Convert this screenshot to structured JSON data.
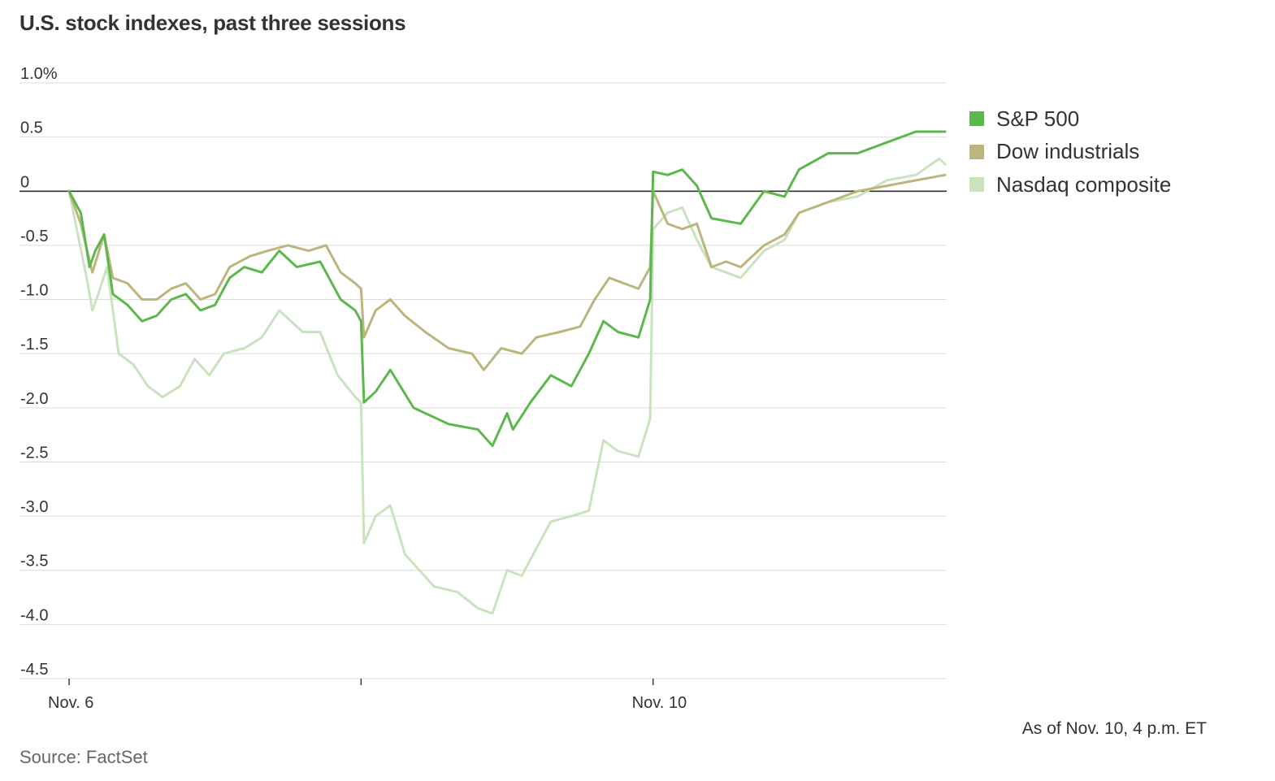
{
  "title": "U.S. stock indexes, past three sessions",
  "footnote": "As of Nov. 10, 4 p.m. ET",
  "source": "Source: FactSet",
  "chart_data": {
    "type": "line",
    "ylim": [
      -4.5,
      1.0
    ],
    "y_ticks": [
      {
        "value": 1.0,
        "label": "1.0%"
      },
      {
        "value": 0.5,
        "label": "0.5"
      },
      {
        "value": 0,
        "label": "0"
      },
      {
        "value": -0.5,
        "label": "-0.5"
      },
      {
        "value": -1.0,
        "label": "-1.0"
      },
      {
        "value": -1.5,
        "label": "-1.5"
      },
      {
        "value": -2.0,
        "label": "-2.0"
      },
      {
        "value": -2.5,
        "label": "-2.5"
      },
      {
        "value": -3.0,
        "label": "-3.0"
      },
      {
        "value": -3.5,
        "label": "-3.5"
      },
      {
        "value": -4.0,
        "label": "-4.0"
      },
      {
        "value": -4.5,
        "label": "-4.5"
      }
    ],
    "xlim": [
      0,
      3
    ],
    "x_ticks": [
      {
        "value": 0,
        "label": "Nov. 6"
      },
      {
        "value": 1,
        "label": ""
      },
      {
        "value": 2,
        "label": "Nov. 10"
      }
    ],
    "grid": true,
    "legend_position": "right",
    "series": [
      {
        "name": "S&P 500",
        "color": "#5cb84c",
        "points": [
          [
            0,
            0
          ],
          [
            0.04,
            -0.2
          ],
          [
            0.07,
            -0.7
          ],
          [
            0.09,
            -0.55
          ],
          [
            0.12,
            -0.4
          ],
          [
            0.15,
            -0.95
          ],
          [
            0.2,
            -1.05
          ],
          [
            0.25,
            -1.2
          ],
          [
            0.3,
            -1.15
          ],
          [
            0.35,
            -1.0
          ],
          [
            0.4,
            -0.95
          ],
          [
            0.45,
            -1.1
          ],
          [
            0.5,
            -1.05
          ],
          [
            0.55,
            -0.8
          ],
          [
            0.6,
            -0.7
          ],
          [
            0.66,
            -0.75
          ],
          [
            0.72,
            -0.55
          ],
          [
            0.78,
            -0.7
          ],
          [
            0.86,
            -0.65
          ],
          [
            0.93,
            -1.0
          ],
          [
            0.98,
            -1.1
          ],
          [
            1.0,
            -1.2
          ],
          [
            1.01,
            -1.95
          ],
          [
            1.05,
            -1.85
          ],
          [
            1.1,
            -1.65
          ],
          [
            1.18,
            -2.0
          ],
          [
            1.3,
            -2.15
          ],
          [
            1.4,
            -2.2
          ],
          [
            1.45,
            -2.35
          ],
          [
            1.5,
            -2.05
          ],
          [
            1.52,
            -2.2
          ],
          [
            1.58,
            -1.95
          ],
          [
            1.65,
            -1.7
          ],
          [
            1.72,
            -1.8
          ],
          [
            1.78,
            -1.5
          ],
          [
            1.83,
            -1.2
          ],
          [
            1.88,
            -1.3
          ],
          [
            1.95,
            -1.35
          ],
          [
            1.99,
            -1.0
          ],
          [
            2.0,
            0.18
          ],
          [
            2.05,
            0.15
          ],
          [
            2.1,
            0.2
          ],
          [
            2.15,
            0.05
          ],
          [
            2.2,
            -0.25
          ],
          [
            2.3,
            -0.3
          ],
          [
            2.38,
            0.0
          ],
          [
            2.45,
            -0.05
          ],
          [
            2.5,
            0.2
          ],
          [
            2.6,
            0.35
          ],
          [
            2.7,
            0.35
          ],
          [
            2.8,
            0.45
          ],
          [
            2.9,
            0.55
          ],
          [
            3.0,
            0.55
          ]
        ]
      },
      {
        "name": "Dow industrials",
        "color": "#bcb57d",
        "points": [
          [
            0,
            0
          ],
          [
            0.04,
            -0.3
          ],
          [
            0.08,
            -0.75
          ],
          [
            0.12,
            -0.4
          ],
          [
            0.15,
            -0.8
          ],
          [
            0.2,
            -0.85
          ],
          [
            0.25,
            -1.0
          ],
          [
            0.3,
            -1.0
          ],
          [
            0.35,
            -0.9
          ],
          [
            0.4,
            -0.85
          ],
          [
            0.45,
            -1.0
          ],
          [
            0.5,
            -0.95
          ],
          [
            0.55,
            -0.7
          ],
          [
            0.62,
            -0.6
          ],
          [
            0.68,
            -0.55
          ],
          [
            0.75,
            -0.5
          ],
          [
            0.82,
            -0.55
          ],
          [
            0.88,
            -0.5
          ],
          [
            0.93,
            -0.75
          ],
          [
            0.98,
            -0.85
          ],
          [
            1.0,
            -0.9
          ],
          [
            1.01,
            -1.35
          ],
          [
            1.05,
            -1.1
          ],
          [
            1.1,
            -1.0
          ],
          [
            1.15,
            -1.15
          ],
          [
            1.22,
            -1.3
          ],
          [
            1.3,
            -1.45
          ],
          [
            1.38,
            -1.5
          ],
          [
            1.42,
            -1.65
          ],
          [
            1.48,
            -1.45
          ],
          [
            1.55,
            -1.5
          ],
          [
            1.6,
            -1.35
          ],
          [
            1.68,
            -1.3
          ],
          [
            1.75,
            -1.25
          ],
          [
            1.8,
            -1.0
          ],
          [
            1.85,
            -0.8
          ],
          [
            1.9,
            -0.85
          ],
          [
            1.95,
            -0.9
          ],
          [
            1.99,
            -0.7
          ],
          [
            2.0,
            0.0
          ],
          [
            2.05,
            -0.3
          ],
          [
            2.1,
            -0.35
          ],
          [
            2.15,
            -0.3
          ],
          [
            2.2,
            -0.7
          ],
          [
            2.25,
            -0.65
          ],
          [
            2.3,
            -0.7
          ],
          [
            2.38,
            -0.5
          ],
          [
            2.45,
            -0.4
          ],
          [
            2.5,
            -0.2
          ],
          [
            2.6,
            -0.1
          ],
          [
            2.7,
            0.0
          ],
          [
            2.8,
            0.05
          ],
          [
            2.9,
            0.1
          ],
          [
            3.0,
            0.15
          ]
        ]
      },
      {
        "name": "Nasdaq composite",
        "color": "#c9e3bf",
        "points": [
          [
            0,
            0
          ],
          [
            0.03,
            -0.4
          ],
          [
            0.06,
            -0.8
          ],
          [
            0.08,
            -1.1
          ],
          [
            0.1,
            -0.95
          ],
          [
            0.13,
            -0.7
          ],
          [
            0.17,
            -1.5
          ],
          [
            0.22,
            -1.6
          ],
          [
            0.27,
            -1.8
          ],
          [
            0.32,
            -1.9
          ],
          [
            0.38,
            -1.8
          ],
          [
            0.43,
            -1.55
          ],
          [
            0.48,
            -1.7
          ],
          [
            0.53,
            -1.5
          ],
          [
            0.6,
            -1.45
          ],
          [
            0.66,
            -1.35
          ],
          [
            0.72,
            -1.1
          ],
          [
            0.8,
            -1.3
          ],
          [
            0.86,
            -1.3
          ],
          [
            0.92,
            -1.7
          ],
          [
            0.98,
            -1.9
          ],
          [
            1.0,
            -1.95
          ],
          [
            1.01,
            -3.25
          ],
          [
            1.05,
            -3.0
          ],
          [
            1.1,
            -2.9
          ],
          [
            1.15,
            -3.35
          ],
          [
            1.25,
            -3.65
          ],
          [
            1.33,
            -3.7
          ],
          [
            1.4,
            -3.85
          ],
          [
            1.45,
            -3.9
          ],
          [
            1.5,
            -3.5
          ],
          [
            1.55,
            -3.55
          ],
          [
            1.6,
            -3.3
          ],
          [
            1.65,
            -3.05
          ],
          [
            1.72,
            -3.0
          ],
          [
            1.78,
            -2.95
          ],
          [
            1.83,
            -2.3
          ],
          [
            1.88,
            -2.4
          ],
          [
            1.95,
            -2.45
          ],
          [
            1.99,
            -2.1
          ],
          [
            2.0,
            -0.35
          ],
          [
            2.05,
            -0.2
          ],
          [
            2.1,
            -0.15
          ],
          [
            2.15,
            -0.45
          ],
          [
            2.2,
            -0.7
          ],
          [
            2.25,
            -0.75
          ],
          [
            2.3,
            -0.8
          ],
          [
            2.38,
            -0.55
          ],
          [
            2.45,
            -0.45
          ],
          [
            2.5,
            -0.2
          ],
          [
            2.6,
            -0.1
          ],
          [
            2.7,
            -0.05
          ],
          [
            2.8,
            0.1
          ],
          [
            2.9,
            0.15
          ],
          [
            2.98,
            0.3
          ],
          [
            3.0,
            0.25
          ]
        ]
      }
    ]
  }
}
